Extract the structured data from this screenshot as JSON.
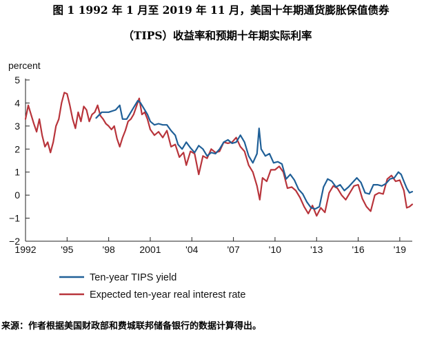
{
  "title_line1": "图 1 1992 年 1 月至 2019 年 11 月，美国十年期通货膨胀保值债券",
  "title_line2": "（TIPS）收益率和预期十年期实际利率",
  "source": "来源：作者根据美国财政部和费城联邦储备银行的数据计算得出。",
  "chart_data": {
    "type": "line",
    "title": "图 1 1992 年 1 月至 2019 年 11 月，美国十年期通货膨胀保值债券（TIPS）收益率和预期十年期实际利率",
    "ylabel": "percent",
    "xlim": [
      1992.0,
      2019.9
    ],
    "ylim": [
      -2,
      5
    ],
    "y_ticks": [
      -2,
      -1,
      0,
      1,
      2,
      3,
      4,
      5
    ],
    "y_tick_labels": [
      "−2",
      "−1",
      "0",
      "1",
      "2",
      "3",
      "4",
      "5"
    ],
    "x_ticks": [
      1992,
      1995,
      1998,
      2001,
      2004,
      2007,
      2010,
      2013,
      2016,
      2019
    ],
    "x_tick_labels": [
      "1992",
      "'95",
      "'98",
      "2001",
      "'04",
      "'07",
      "'10",
      "'13",
      "'16",
      "'19"
    ],
    "grid": false,
    "legend_position": "bottom-left",
    "colors": {
      "tips": "#1f5f97",
      "expected": "#b8343b"
    },
    "series": [
      {
        "name": "Ten-year TIPS yield",
        "key": "tips",
        "x": [
          1997.1,
          1997.5,
          1998.0,
          1998.5,
          1998.8,
          1999.0,
          1999.3,
          1999.6,
          1999.9,
          2000.1,
          2000.3,
          2000.5,
          2000.8,
          2001.0,
          2001.3,
          2001.6,
          2001.9,
          2002.2,
          2002.5,
          2002.8,
          2003.0,
          2003.3,
          2003.6,
          2003.9,
          2004.2,
          2004.5,
          2004.8,
          2005.1,
          2005.4,
          2005.7,
          2006.0,
          2006.3,
          2006.6,
          2006.9,
          2007.2,
          2007.5,
          2007.8,
          2008.1,
          2008.4,
          2008.7,
          2008.85,
          2009.0,
          2009.3,
          2009.6,
          2009.9,
          2010.2,
          2010.5,
          2010.8,
          2011.1,
          2011.4,
          2011.7,
          2012.0,
          2012.3,
          2012.6,
          2012.9,
          2013.2,
          2013.5,
          2013.8,
          2014.1,
          2014.4,
          2014.7,
          2015.0,
          2015.3,
          2015.6,
          2015.9,
          2016.2,
          2016.5,
          2016.8,
          2017.1,
          2017.4,
          2017.7,
          2018.0,
          2018.3,
          2018.6,
          2018.9,
          2019.1,
          2019.3,
          2019.5,
          2019.7,
          2019.9
        ],
        "y": [
          3.35,
          3.6,
          3.6,
          3.7,
          3.9,
          3.3,
          3.3,
          3.6,
          3.9,
          4.1,
          4.0,
          3.8,
          3.5,
          3.2,
          3.05,
          3.1,
          3.05,
          3.05,
          2.8,
          2.6,
          2.2,
          2.0,
          2.3,
          2.05,
          1.85,
          2.15,
          2.0,
          1.7,
          1.85,
          1.8,
          2.0,
          2.3,
          2.4,
          2.25,
          2.3,
          2.6,
          2.3,
          1.7,
          1.4,
          1.8,
          2.9,
          2.0,
          1.7,
          1.8,
          1.4,
          1.45,
          1.35,
          0.7,
          0.9,
          0.65,
          0.25,
          0.05,
          -0.3,
          -0.55,
          -0.6,
          -0.5,
          0.35,
          0.7,
          0.6,
          0.35,
          0.45,
          0.2,
          0.35,
          0.55,
          0.75,
          0.55,
          0.1,
          0.05,
          0.45,
          0.45,
          0.4,
          0.5,
          0.7,
          0.75,
          1.0,
          0.9,
          0.6,
          0.3,
          0.1,
          0.15
        ]
      },
      {
        "name": "Expected ten-year real interest rate",
        "key": "expected",
        "x": [
          1992.0,
          1992.2,
          1992.4,
          1992.6,
          1992.8,
          1993.0,
          1993.2,
          1993.4,
          1993.6,
          1993.8,
          1994.0,
          1994.2,
          1994.4,
          1994.6,
          1994.8,
          1995.0,
          1995.2,
          1995.4,
          1995.6,
          1995.8,
          1996.0,
          1996.2,
          1996.4,
          1996.6,
          1996.8,
          1997.0,
          1997.2,
          1997.4,
          1997.6,
          1997.8,
          1998.0,
          1998.2,
          1998.4,
          1998.6,
          1998.8,
          1999.0,
          1999.2,
          1999.4,
          1999.6,
          1999.8,
          2000.0,
          2000.2,
          2000.4,
          2000.6,
          2000.8,
          2001.0,
          2001.3,
          2001.6,
          2001.9,
          2002.2,
          2002.5,
          2002.8,
          2003.1,
          2003.4,
          2003.6,
          2003.9,
          2004.2,
          2004.5,
          2004.8,
          2005.1,
          2005.4,
          2005.7,
          2006.0,
          2006.3,
          2006.6,
          2006.9,
          2007.2,
          2007.5,
          2007.8,
          2008.1,
          2008.4,
          2008.7,
          2008.9,
          2009.1,
          2009.4,
          2009.7,
          2010.0,
          2010.3,
          2010.6,
          2010.9,
          2011.2,
          2011.5,
          2011.8,
          2012.1,
          2012.4,
          2012.7,
          2013.0,
          2013.3,
          2013.6,
          2013.9,
          2014.2,
          2014.5,
          2014.8,
          2015.1,
          2015.4,
          2015.7,
          2016.0,
          2016.3,
          2016.6,
          2016.9,
          2017.2,
          2017.5,
          2017.8,
          2018.1,
          2018.4,
          2018.7,
          2019.0,
          2019.3,
          2019.5,
          2019.7,
          2019.9
        ],
        "y": [
          3.3,
          3.9,
          3.5,
          3.1,
          2.75,
          3.3,
          2.6,
          2.1,
          2.3,
          1.85,
          2.3,
          3.0,
          3.3,
          4.0,
          4.45,
          4.4,
          3.9,
          3.3,
          2.9,
          3.6,
          3.2,
          3.85,
          3.7,
          3.2,
          3.5,
          3.6,
          3.9,
          3.45,
          3.3,
          3.1,
          3.0,
          2.85,
          3.0,
          2.45,
          2.1,
          2.5,
          2.8,
          3.2,
          3.3,
          3.5,
          3.85,
          4.2,
          3.5,
          3.6,
          3.3,
          2.85,
          2.6,
          2.75,
          2.5,
          2.8,
          2.1,
          2.2,
          1.65,
          1.85,
          1.3,
          1.9,
          1.8,
          0.9,
          1.7,
          1.6,
          2.0,
          1.85,
          1.9,
          2.3,
          2.25,
          2.3,
          2.5,
          2.1,
          1.9,
          1.3,
          1.0,
          0.4,
          -0.2,
          0.75,
          0.6,
          1.1,
          1.1,
          1.25,
          1.0,
          0.3,
          0.35,
          0.2,
          -0.1,
          -0.5,
          -0.8,
          -0.45,
          -0.9,
          -0.55,
          -0.75,
          0.1,
          0.4,
          0.3,
          0.0,
          -0.2,
          0.1,
          0.4,
          0.45,
          -0.15,
          -0.5,
          -0.7,
          0.0,
          0.1,
          0.05,
          0.7,
          0.85,
          0.6,
          0.65,
          0.2,
          -0.55,
          -0.5,
          -0.4
        ]
      }
    ]
  }
}
